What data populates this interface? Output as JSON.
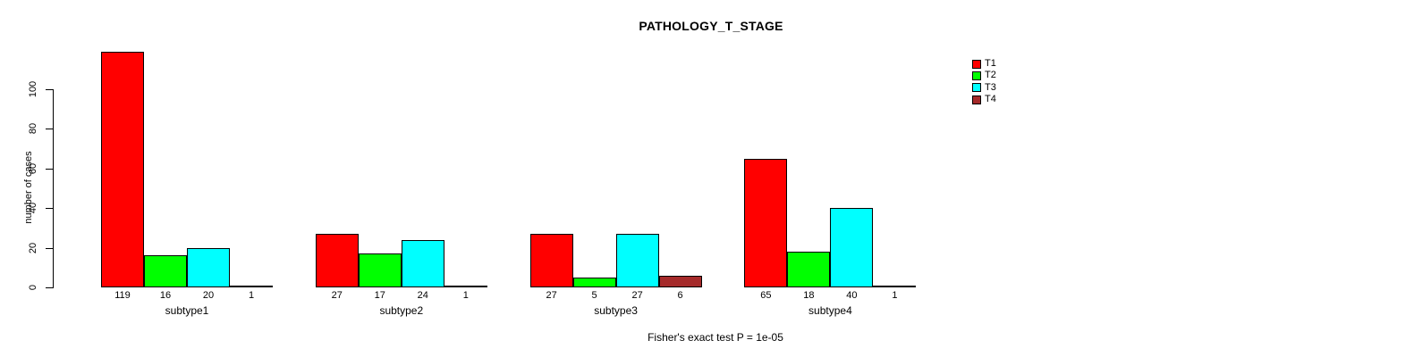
{
  "chart_data": {
    "type": "bar",
    "title": "PATHOLOGY_T_STAGE",
    "ylabel": "number of cases",
    "xlabel": "",
    "footnote": "Fisher's exact test P = 1e-05",
    "categories": [
      "subtype1",
      "subtype2",
      "subtype3",
      "subtype4"
    ],
    "series": [
      {
        "name": "T1",
        "color": "#FF0000",
        "values": [
          119,
          27,
          27,
          65
        ]
      },
      {
        "name": "T2",
        "color": "#00FF00",
        "values": [
          16,
          17,
          5,
          18
        ]
      },
      {
        "name": "T3",
        "color": "#00FFFF",
        "values": [
          20,
          24,
          27,
          40
        ]
      },
      {
        "name": "T4",
        "color": "#A52A2A",
        "values": [
          1,
          1,
          6,
          1
        ]
      }
    ],
    "bar_border_color": "#000000",
    "yticks": [
      0,
      20,
      40,
      60,
      80,
      100
    ],
    "ylim": [
      0,
      100
    ],
    "grid": false,
    "show_bar_values": true,
    "legend_position": "top-right",
    "legend_entries": [
      "T1",
      "T2",
      "T3",
      "T4"
    ]
  }
}
